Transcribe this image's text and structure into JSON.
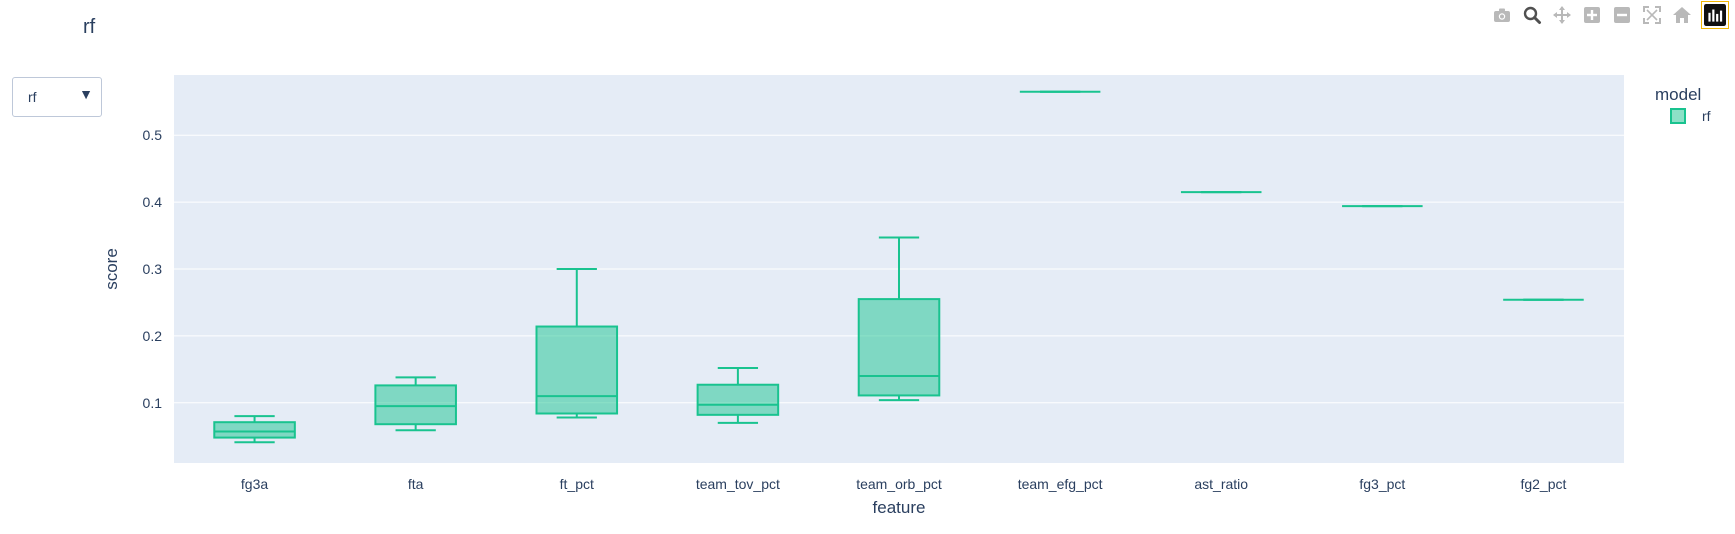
{
  "title": "rf",
  "dropdown": {
    "selected": "rf",
    "arrow": "▼"
  },
  "modebar": {
    "buttons": [
      {
        "name": "camera-icon"
      },
      {
        "name": "zoom-icon"
      },
      {
        "name": "pan-icon"
      },
      {
        "name": "zoom-in-icon"
      },
      {
        "name": "zoom-out-icon"
      },
      {
        "name": "autoscale-icon"
      },
      {
        "name": "home-icon"
      }
    ]
  },
  "legend": {
    "title": "model",
    "entries": [
      "rf"
    ]
  },
  "colors": {
    "plot_bg": "#e5ecf6",
    "grid": "#ffffff",
    "box_line": "#19c38f",
    "box_fill": "rgba(25,195,143,0.5)",
    "text": "#2a3f5f"
  },
  "chart_data": {
    "type": "box",
    "xlabel": "feature",
    "ylabel": "score",
    "ylim": [
      0.01,
      0.59
    ],
    "yticks": [
      "0.1",
      "0.2",
      "0.3",
      "0.4",
      "0.5"
    ],
    "categories": [
      "fg3a",
      "fta",
      "ft_pct",
      "team_tov_pct",
      "team_orb_pct",
      "team_efg_pct",
      "ast_ratio",
      "fg3_pct",
      "fg2_pct"
    ],
    "series": [
      {
        "name": "rf",
        "boxes": [
          {
            "min": 0.041,
            "q1": 0.048,
            "median": 0.057,
            "q3": 0.071,
            "max": 0.08
          },
          {
            "min": 0.059,
            "q1": 0.068,
            "median": 0.095,
            "q3": 0.126,
            "max": 0.138
          },
          {
            "min": 0.078,
            "q1": 0.084,
            "median": 0.11,
            "q3": 0.214,
            "max": 0.3
          },
          {
            "min": 0.07,
            "q1": 0.082,
            "median": 0.097,
            "q3": 0.127,
            "max": 0.152
          },
          {
            "min": 0.104,
            "q1": 0.111,
            "median": 0.14,
            "q3": 0.255,
            "max": 0.347
          },
          {
            "min": 0.565,
            "q1": 0.565,
            "median": 0.565,
            "q3": 0.565,
            "max": 0.565
          },
          {
            "min": 0.415,
            "q1": 0.415,
            "median": 0.415,
            "q3": 0.415,
            "max": 0.415
          },
          {
            "min": 0.394,
            "q1": 0.394,
            "median": 0.394,
            "q3": 0.394,
            "max": 0.394
          },
          {
            "min": 0.254,
            "q1": 0.254,
            "median": 0.254,
            "q3": 0.254,
            "max": 0.254
          }
        ]
      }
    ],
    "grid": true,
    "legend_position": "top-right"
  }
}
